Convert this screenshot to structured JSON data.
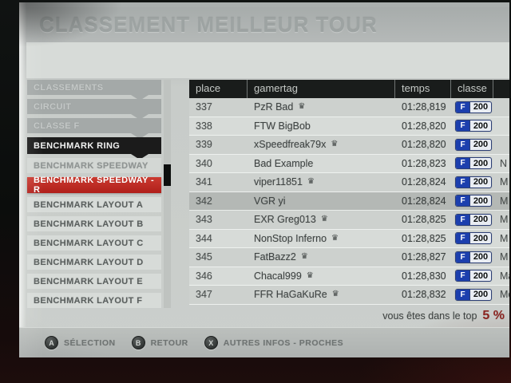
{
  "window": {
    "title": "CLASSEMENT MEILLEUR TOUR"
  },
  "sidebar": {
    "items": [
      {
        "label": "CLASSEMENTS",
        "type": "crumb",
        "chevron": true
      },
      {
        "label": "CIRCUIT",
        "type": "crumb",
        "chevron": true
      },
      {
        "label": "CLASSE F",
        "type": "crumb",
        "chevron": true
      },
      {
        "label": "BENCHMARK RING",
        "type": "crumb-active",
        "chevron": true
      },
      {
        "label": "BENCHMARK SPEEDWAY",
        "type": "option",
        "chevron": false
      },
      {
        "label": "BENCHMARK SPEEDWAY - R",
        "type": "option-selected",
        "chevron": false
      },
      {
        "label": "BENCHMARK LAYOUT A",
        "type": "option-light",
        "chevron": false
      },
      {
        "label": "BENCHMARK LAYOUT B",
        "type": "option-light",
        "chevron": false
      },
      {
        "label": "BENCHMARK LAYOUT C",
        "type": "option-light",
        "chevron": false
      },
      {
        "label": "BENCHMARK LAYOUT D",
        "type": "option-light",
        "chevron": false
      },
      {
        "label": "BENCHMARK LAYOUT E",
        "type": "option-light",
        "chevron": false
      },
      {
        "label": "BENCHMARK LAYOUT F",
        "type": "option-light",
        "chevron": false
      }
    ]
  },
  "table": {
    "columns": [
      "place",
      "gamertag",
      "temps",
      "classe"
    ],
    "badge": {
      "letter": "F",
      "value": "200"
    },
    "rows": [
      {
        "place": "337",
        "gamertag": "PzR Bad",
        "crown": true,
        "temps": "01:28,819",
        "car": "",
        "highlighted": false
      },
      {
        "place": "338",
        "gamertag": "FTW BigBob",
        "crown": false,
        "temps": "01:28,820",
        "car": "",
        "highlighted": false
      },
      {
        "place": "339",
        "gamertag": "xSpeedfreak79x",
        "crown": true,
        "temps": "01:28,820",
        "car": "",
        "highlighted": false
      },
      {
        "place": "340",
        "gamertag": "Bad Example",
        "crown": false,
        "temps": "01:28,823",
        "car": "N",
        "highlighted": false
      },
      {
        "place": "341",
        "gamertag": "viper11851",
        "crown": true,
        "temps": "01:28,824",
        "car": "M",
        "highlighted": false
      },
      {
        "place": "342",
        "gamertag": "VGR yi",
        "crown": false,
        "temps": "01:28,824",
        "car": "M",
        "highlighted": true
      },
      {
        "place": "343",
        "gamertag": "EXR Greg013",
        "crown": true,
        "temps": "01:28,825",
        "car": "M",
        "highlighted": false
      },
      {
        "place": "344",
        "gamertag": "NonStop Inferno",
        "crown": true,
        "temps": "01:28,825",
        "car": "M",
        "highlighted": false
      },
      {
        "place": "345",
        "gamertag": "FatBazz2",
        "crown": true,
        "temps": "01:28,827",
        "car": "M",
        "highlighted": false
      },
      {
        "place": "346",
        "gamertag": "Chacal999",
        "crown": true,
        "temps": "01:28,830",
        "car": "Ma",
        "highlighted": false
      },
      {
        "place": "347",
        "gamertag": "FFR HaGaKuRe",
        "crown": true,
        "temps": "01:28,832",
        "car": "Me",
        "highlighted": false
      }
    ]
  },
  "footer": {
    "label": "vous êtes dans le top",
    "value": "5 %"
  },
  "controls": [
    {
      "button": "A",
      "label": "SÉLECTION"
    },
    {
      "button": "B",
      "label": "RETOUR"
    },
    {
      "button": "X",
      "label": "AUTRES INFOS - PROCHES"
    }
  ],
  "icons": {
    "crown": "♛"
  },
  "colors": {
    "selected_item_red": "#b9221c",
    "active_item_black": "#1b1b1b",
    "class_badge_blue": "#1c3fae",
    "top_percent_red": "#8c2420",
    "header_black": "#191c1b",
    "screen_gray": "#c8ccc9"
  }
}
